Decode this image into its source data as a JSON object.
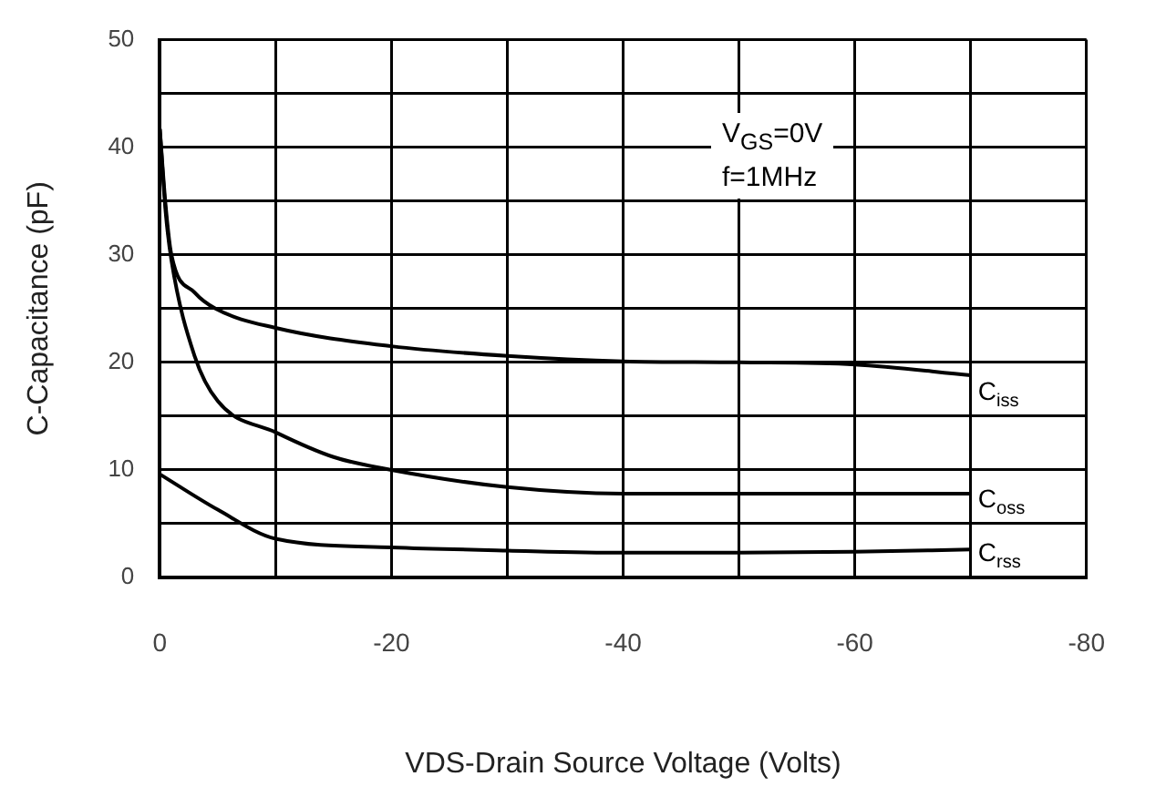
{
  "chart_data": {
    "type": "line",
    "xlabel": "VDS-Drain Source Voltage (Volts)",
    "ylabel": "C-Capacitance (pF)",
    "xlim": [
      0,
      -80
    ],
    "xticks": [
      0,
      {
        "value": -10,
        "label": null
      },
      -20,
      {
        "value": -30,
        "label": null
      },
      -40,
      {
        "value": -50,
        "label": null
      },
      -60,
      {
        "value": -70,
        "label": null
      },
      -80
    ],
    "ylim": [
      0,
      50
    ],
    "yticks": [
      0,
      {
        "value": 5,
        "label": null
      },
      10,
      {
        "value": 15,
        "label": null
      },
      20,
      {
        "value": 25,
        "label": null
      },
      30,
      {
        "value": 35,
        "label": null
      },
      40,
      {
        "value": 45,
        "label": null
      },
      50
    ],
    "grid": true,
    "marker": "none",
    "line_style": "solid",
    "annotations": [
      "V$_{GS}$=0V",
      "f=1MHz"
    ],
    "series": [
      {
        "name": "C$_{iss}$",
        "color": "#000000",
        "x": [
          0,
          -0.5,
          -1,
          -3,
          -4.8,
          -10,
          -20,
          -30,
          -40,
          -50,
          -60,
          -70
        ],
        "values": [
          41.7,
          34.6,
          30,
          26.5,
          25,
          23.2,
          21.5,
          20.6,
          20.1,
          20,
          19.8,
          18.8
        ]
      },
      {
        "name": "C$_{oss}$",
        "color": "#000000",
        "x": [
          0,
          -0.5,
          -1,
          -3,
          -5,
          -10,
          -15,
          -20,
          -30,
          -40,
          -50,
          -60,
          -70
        ],
        "values": [
          41.7,
          34,
          29.5,
          20.6,
          16.4,
          13.5,
          11.2,
          10,
          8.4,
          7.8,
          7.8,
          7.8,
          7.8
        ]
      },
      {
        "name": "C$_{rss}$",
        "color": "#000000",
        "x": [
          0,
          -5,
          -10,
          -20,
          -30,
          -40,
          -50,
          -60,
          -70
        ],
        "values": [
          9.6,
          6.3,
          3.6,
          2.8,
          2.5,
          2.3,
          2.3,
          2.4,
          2.6
        ]
      }
    ]
  }
}
